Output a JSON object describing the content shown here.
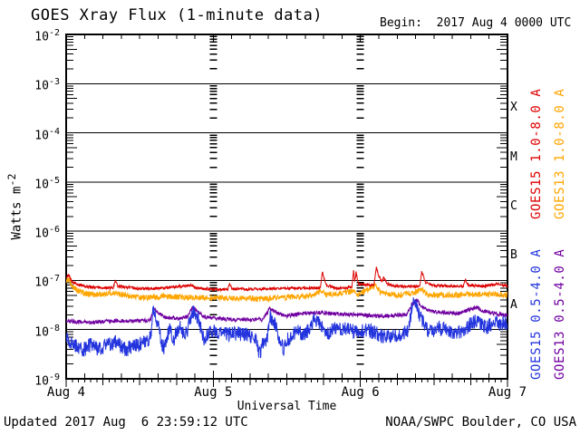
{
  "header": {
    "title": "GOES Xray Flux (1-minute data)",
    "begin": "Begin:  2017 Aug 4 0000 UTC"
  },
  "footer": {
    "updated": "Updated 2017 Aug  6 23:59:12 UTC",
    "source": "NOAA/SWPC Boulder, CO USA"
  },
  "axes": {
    "y_label_base": "Watts m",
    "y_label_exp": "-2",
    "x_label": "Universal Time",
    "y_tick_mantissa": "10",
    "y_tick_exponents": [
      -2,
      -3,
      -4,
      -5,
      -6,
      -7,
      -8,
      -9
    ],
    "x_tick_labels": [
      "Aug 4",
      "Aug 5",
      "Aug 6",
      "Aug 7"
    ]
  },
  "flare_classes": [
    "X",
    "M",
    "C",
    "B",
    "A"
  ],
  "legend": [
    {
      "label": "GOES15 1.0-8.0 A",
      "color": "#dd0000",
      "column": 0,
      "row": 0
    },
    {
      "label": "GOES13 1.0-8.0 A",
      "color": "#ffa500",
      "column": 1,
      "row": 0
    },
    {
      "label": "GOES15 0.5-4.0 A",
      "color": "#2233dd",
      "column": 0,
      "row": 1
    },
    {
      "label": "GOES13 0.5-4.0 A",
      "color": "#7000a0",
      "column": 1,
      "row": 1
    }
  ],
  "chart_data": {
    "type": "line",
    "title": "GOES Xray Flux (1-minute data)",
    "xlabel": "Universal Time",
    "ylabel": "Watts m^-2",
    "x_unit": "hours since 2017 Aug 4 0000 UTC",
    "x_range": [
      0,
      72
    ],
    "y_scale": "log",
    "y_range": [
      1e-09,
      0.01
    ],
    "grid": {
      "h_gridline_exponents": [
        -3,
        -4,
        -5,
        -6,
        -7,
        -8
      ],
      "v_dash_columns_hours": [
        24,
        48
      ],
      "x_day_hours": [
        0,
        24,
        48,
        72
      ],
      "top_minor_step_h": 3,
      "bottom_minor_step_h": 1
    },
    "series": [
      {
        "name": "GOES13 0.5-4.0 A",
        "color": "#7000a0",
        "noise_dex": 0.04,
        "seed": 33,
        "points": [
          [
            0,
            1.5e-08
          ],
          [
            4,
            1.4e-08
          ],
          [
            8,
            1.5e-08
          ],
          [
            12,
            1.5e-08
          ],
          [
            13.8,
            1.6e-08
          ],
          [
            14.2,
            2.8e-08
          ],
          [
            15,
            2.2e-08
          ],
          [
            16,
            1.8e-08
          ],
          [
            18,
            1.7e-08
          ],
          [
            19.8,
            1.8e-08
          ],
          [
            20.6,
            2.8e-08
          ],
          [
            21.5,
            2.4e-08
          ],
          [
            22.5,
            1.8e-08
          ],
          [
            24,
            1.7e-08
          ],
          [
            28,
            1.6e-08
          ],
          [
            32,
            1.6e-08
          ],
          [
            33.2,
            2.6e-08
          ],
          [
            34,
            2.4e-08
          ],
          [
            35,
            2e-08
          ],
          [
            36,
            1.9e-08
          ],
          [
            38,
            2.1e-08
          ],
          [
            40,
            2.2e-08
          ],
          [
            42,
            2.2e-08
          ],
          [
            44,
            2.1e-08
          ],
          [
            48,
            2e-08
          ],
          [
            50,
            1.9e-08
          ],
          [
            52,
            1.9e-08
          ],
          [
            55.5,
            2e-08
          ],
          [
            56.4,
            3.2e-08
          ],
          [
            57.2,
            4e-08
          ],
          [
            57.8,
            3.2e-08
          ],
          [
            58.6,
            2.6e-08
          ],
          [
            60,
            2.3e-08
          ],
          [
            62,
            2.2e-08
          ],
          [
            64,
            2.1e-08
          ],
          [
            66,
            2.6e-08
          ],
          [
            67,
            2.8e-08
          ],
          [
            68,
            2.4e-08
          ],
          [
            70,
            2.1e-08
          ],
          [
            72,
            2e-08
          ]
        ]
      },
      {
        "name": "GOES15 0.5-4.0 A",
        "color": "#2233dd",
        "noise_dex": 0.15,
        "seed": 44,
        "points": [
          [
            0,
            7e-09
          ],
          [
            1,
            5e-09
          ],
          [
            2,
            4.5e-09
          ],
          [
            3,
            4e-09
          ],
          [
            4,
            5e-09
          ],
          [
            5,
            4e-09
          ],
          [
            6,
            4.5e-09
          ],
          [
            7,
            5e-09
          ],
          [
            8,
            5.5e-09
          ],
          [
            9,
            4.5e-09
          ],
          [
            10,
            4e-09
          ],
          [
            11,
            4.5e-09
          ],
          [
            12,
            5e-09
          ],
          [
            13,
            6e-09
          ],
          [
            13.8,
            7e-09
          ],
          [
            14.2,
            2.5e-08
          ],
          [
            14.6,
            1.8e-08
          ],
          [
            15,
            1.2e-08
          ],
          [
            15.5,
            6e-09
          ],
          [
            16,
            4e-09
          ],
          [
            16.5,
            8e-09
          ],
          [
            17,
            1e-08
          ],
          [
            17.5,
            6e-09
          ],
          [
            18,
            9e-09
          ],
          [
            18.5,
            1.2e-08
          ],
          [
            19,
            8e-09
          ],
          [
            19.8,
            1e-08
          ],
          [
            20.6,
            2.4e-08
          ],
          [
            21,
            2.2e-08
          ],
          [
            21.5,
            1.8e-08
          ],
          [
            22,
            1e-08
          ],
          [
            22.5,
            6e-09
          ],
          [
            23,
            8e-09
          ],
          [
            24,
            1e-08
          ],
          [
            25,
            9e-09
          ],
          [
            26,
            8e-09
          ],
          [
            27,
            8e-09
          ],
          [
            28,
            8.5e-09
          ],
          [
            29,
            8e-09
          ],
          [
            30,
            7.5e-09
          ],
          [
            31,
            6e-09
          ],
          [
            31.5,
            3e-09
          ],
          [
            32,
            5e-09
          ],
          [
            32.8,
            6e-09
          ],
          [
            33.2,
            2e-08
          ],
          [
            33.6,
            1.6e-08
          ],
          [
            34,
            1.4e-08
          ],
          [
            34.5,
            8e-09
          ],
          [
            35,
            6e-09
          ],
          [
            35.5,
            4e-09
          ],
          [
            36,
            6e-09
          ],
          [
            37,
            8e-09
          ],
          [
            38,
            1e-08
          ],
          [
            38.5,
            7e-09
          ],
          [
            39,
            8e-09
          ],
          [
            40,
            1.2e-08
          ],
          [
            40.5,
            1.6e-08
          ],
          [
            41,
            1.4e-08
          ],
          [
            41.5,
            1.2e-08
          ],
          [
            42,
            1e-08
          ],
          [
            42.5,
            8e-09
          ],
          [
            43,
            9e-09
          ],
          [
            44,
            1.1e-08
          ],
          [
            45,
            1e-08
          ],
          [
            46,
            1e-08
          ],
          [
            47,
            9e-09
          ],
          [
            48,
            9e-09
          ],
          [
            49,
            1e-08
          ],
          [
            50,
            9e-09
          ],
          [
            51,
            8e-09
          ],
          [
            52,
            7e-09
          ],
          [
            53,
            7.5e-09
          ],
          [
            54,
            7e-09
          ],
          [
            55,
            8e-09
          ],
          [
            55.8,
            1e-08
          ],
          [
            56.4,
            2.8e-08
          ],
          [
            56.8,
            3.5e-08
          ],
          [
            57.2,
            3e-08
          ],
          [
            57.6,
            2e-08
          ],
          [
            58,
            1.6e-08
          ],
          [
            58.5,
            1.2e-08
          ],
          [
            59,
            1e-08
          ],
          [
            59.5,
            9e-09
          ],
          [
            60,
            1e-08
          ],
          [
            61,
            1.1e-08
          ],
          [
            62,
            1e-08
          ],
          [
            63,
            9e-09
          ],
          [
            63.5,
            8e-09
          ],
          [
            64,
            9e-09
          ],
          [
            65,
            1e-08
          ],
          [
            66,
            1.3e-08
          ],
          [
            66.5,
            1.5e-08
          ],
          [
            67,
            1.4e-08
          ],
          [
            68,
            1.3e-08
          ],
          [
            68.5,
            1.1e-08
          ],
          [
            69,
            1.2e-08
          ],
          [
            70,
            1.4e-08
          ],
          [
            71,
            1.3e-08
          ],
          [
            72,
            1.4e-08
          ]
        ]
      },
      {
        "name": "GOES13 1.0-8.0 A",
        "color": "#ffa500",
        "noise_dex": 0.06,
        "seed": 22,
        "points": [
          [
            0,
            9.5e-08
          ],
          [
            0.5,
            1.05e-07
          ],
          [
            1,
            7.5e-08
          ],
          [
            2,
            6.2e-08
          ],
          [
            3,
            5.6e-08
          ],
          [
            5,
            5e-08
          ],
          [
            8,
            5.6e-08
          ],
          [
            12,
            4.4e-08
          ],
          [
            16,
            4.8e-08
          ],
          [
            20,
            4.5e-08
          ],
          [
            24,
            4.4e-08
          ],
          [
            28,
            4.3e-08
          ],
          [
            32,
            4.2e-08
          ],
          [
            36,
            4.6e-08
          ],
          [
            40,
            4.8e-08
          ],
          [
            41.8,
            6.2e-08
          ],
          [
            42.5,
            5e-08
          ],
          [
            46.9,
            6e-08
          ],
          [
            47.5,
            5e-08
          ],
          [
            50.6,
            8.2e-08
          ],
          [
            51.2,
            5.6e-08
          ],
          [
            54,
            5e-08
          ],
          [
            56,
            5.4e-08
          ],
          [
            58,
            6.4e-08
          ],
          [
            59,
            5.2e-08
          ],
          [
            62,
            5e-08
          ],
          [
            66,
            5.2e-08
          ],
          [
            70,
            5.2e-08
          ],
          [
            72,
            5e-08
          ]
        ]
      },
      {
        "name": "GOES15 1.0-8.0 A",
        "color": "#dd0000",
        "noise_dex": 0.028,
        "seed": 11,
        "points": [
          [
            0,
            1.15e-07
          ],
          [
            0.4,
            1.3e-07
          ],
          [
            1,
            9.5e-08
          ],
          [
            2,
            8.2e-08
          ],
          [
            3,
            7.6e-08
          ],
          [
            5,
            7.2e-08
          ],
          [
            7.7,
            7e-08
          ],
          [
            8,
            1.05e-07
          ],
          [
            8.4,
            7.6e-08
          ],
          [
            12,
            6.8e-08
          ],
          [
            16,
            7e-08
          ],
          [
            20.5,
            8e-08
          ],
          [
            21,
            7e-08
          ],
          [
            24,
            6.6e-08
          ],
          [
            26.4,
            6.6e-08
          ],
          [
            26.6,
            8.8e-08
          ],
          [
            27.1,
            6.8e-08
          ],
          [
            30,
            6.6e-08
          ],
          [
            34,
            6.8e-08
          ],
          [
            38,
            7e-08
          ],
          [
            41.5,
            7e-08
          ],
          [
            41.8,
            1.5e-07
          ],
          [
            42.4,
            8e-08
          ],
          [
            44,
            7e-08
          ],
          [
            46.6,
            7.2e-08
          ],
          [
            46.9,
            1.55e-07
          ],
          [
            47.1,
            9.5e-08
          ],
          [
            47.3,
            1.45e-07
          ],
          [
            47.7,
            8.2e-08
          ],
          [
            50.2,
            8e-08
          ],
          [
            50.6,
            1.9e-07
          ],
          [
            51,
            1.25e-07
          ],
          [
            51.5,
            9.5e-08
          ],
          [
            51.8,
            1.15e-07
          ],
          [
            52.4,
            8.5e-08
          ],
          [
            54,
            7.6e-08
          ],
          [
            57.7,
            7.6e-08
          ],
          [
            58,
            1.55e-07
          ],
          [
            58.6,
            9.2e-08
          ],
          [
            60,
            7.8e-08
          ],
          [
            64.8,
            7.6e-08
          ],
          [
            65.1,
            1.05e-07
          ],
          [
            65.6,
            8e-08
          ],
          [
            68,
            7.6e-08
          ],
          [
            70,
            8.5e-08
          ],
          [
            72,
            7.8e-08
          ]
        ]
      }
    ]
  }
}
